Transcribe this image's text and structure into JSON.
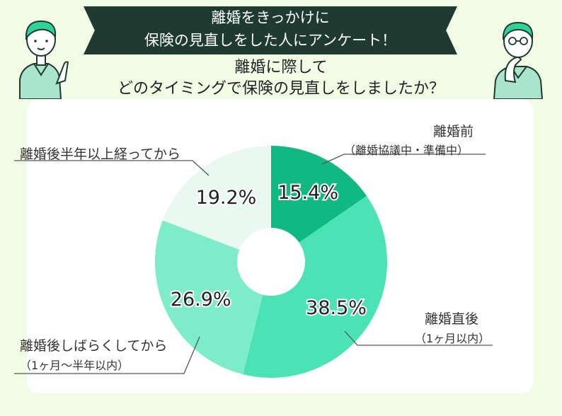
{
  "header": {
    "banner_line1": "離婚をきっかけに",
    "banner_line2": "保険の見直しをした人にアンケート！",
    "question_line1": "離婚に際して",
    "question_line2": "どのタイミングで保険の見直しをしましたか？"
  },
  "colors": {
    "background": "#f1fbe6",
    "banner": "#1f3a30",
    "slices": [
      "#10b981",
      "#4be3b6",
      "#7decc8",
      "#e9f9f2"
    ]
  },
  "chart_data": {
    "type": "pie",
    "donut": true,
    "slices": [
      {
        "label": "離婚前",
        "sublabel": "（離婚協議中・準備中）",
        "value": 15.4,
        "value_label": "15.4%"
      },
      {
        "label": "離婚直後",
        "sublabel": "（1ヶ月以内）",
        "value": 38.5,
        "value_label": "38.5%"
      },
      {
        "label": "離婚後しばらくしてから",
        "sublabel": "（1ヶ月〜半年以内）",
        "value": 26.9,
        "value_label": "26.9%"
      },
      {
        "label": "離婚後半年以上経ってから",
        "sublabel": "",
        "value": 19.2,
        "value_label": "19.2%"
      }
    ]
  }
}
